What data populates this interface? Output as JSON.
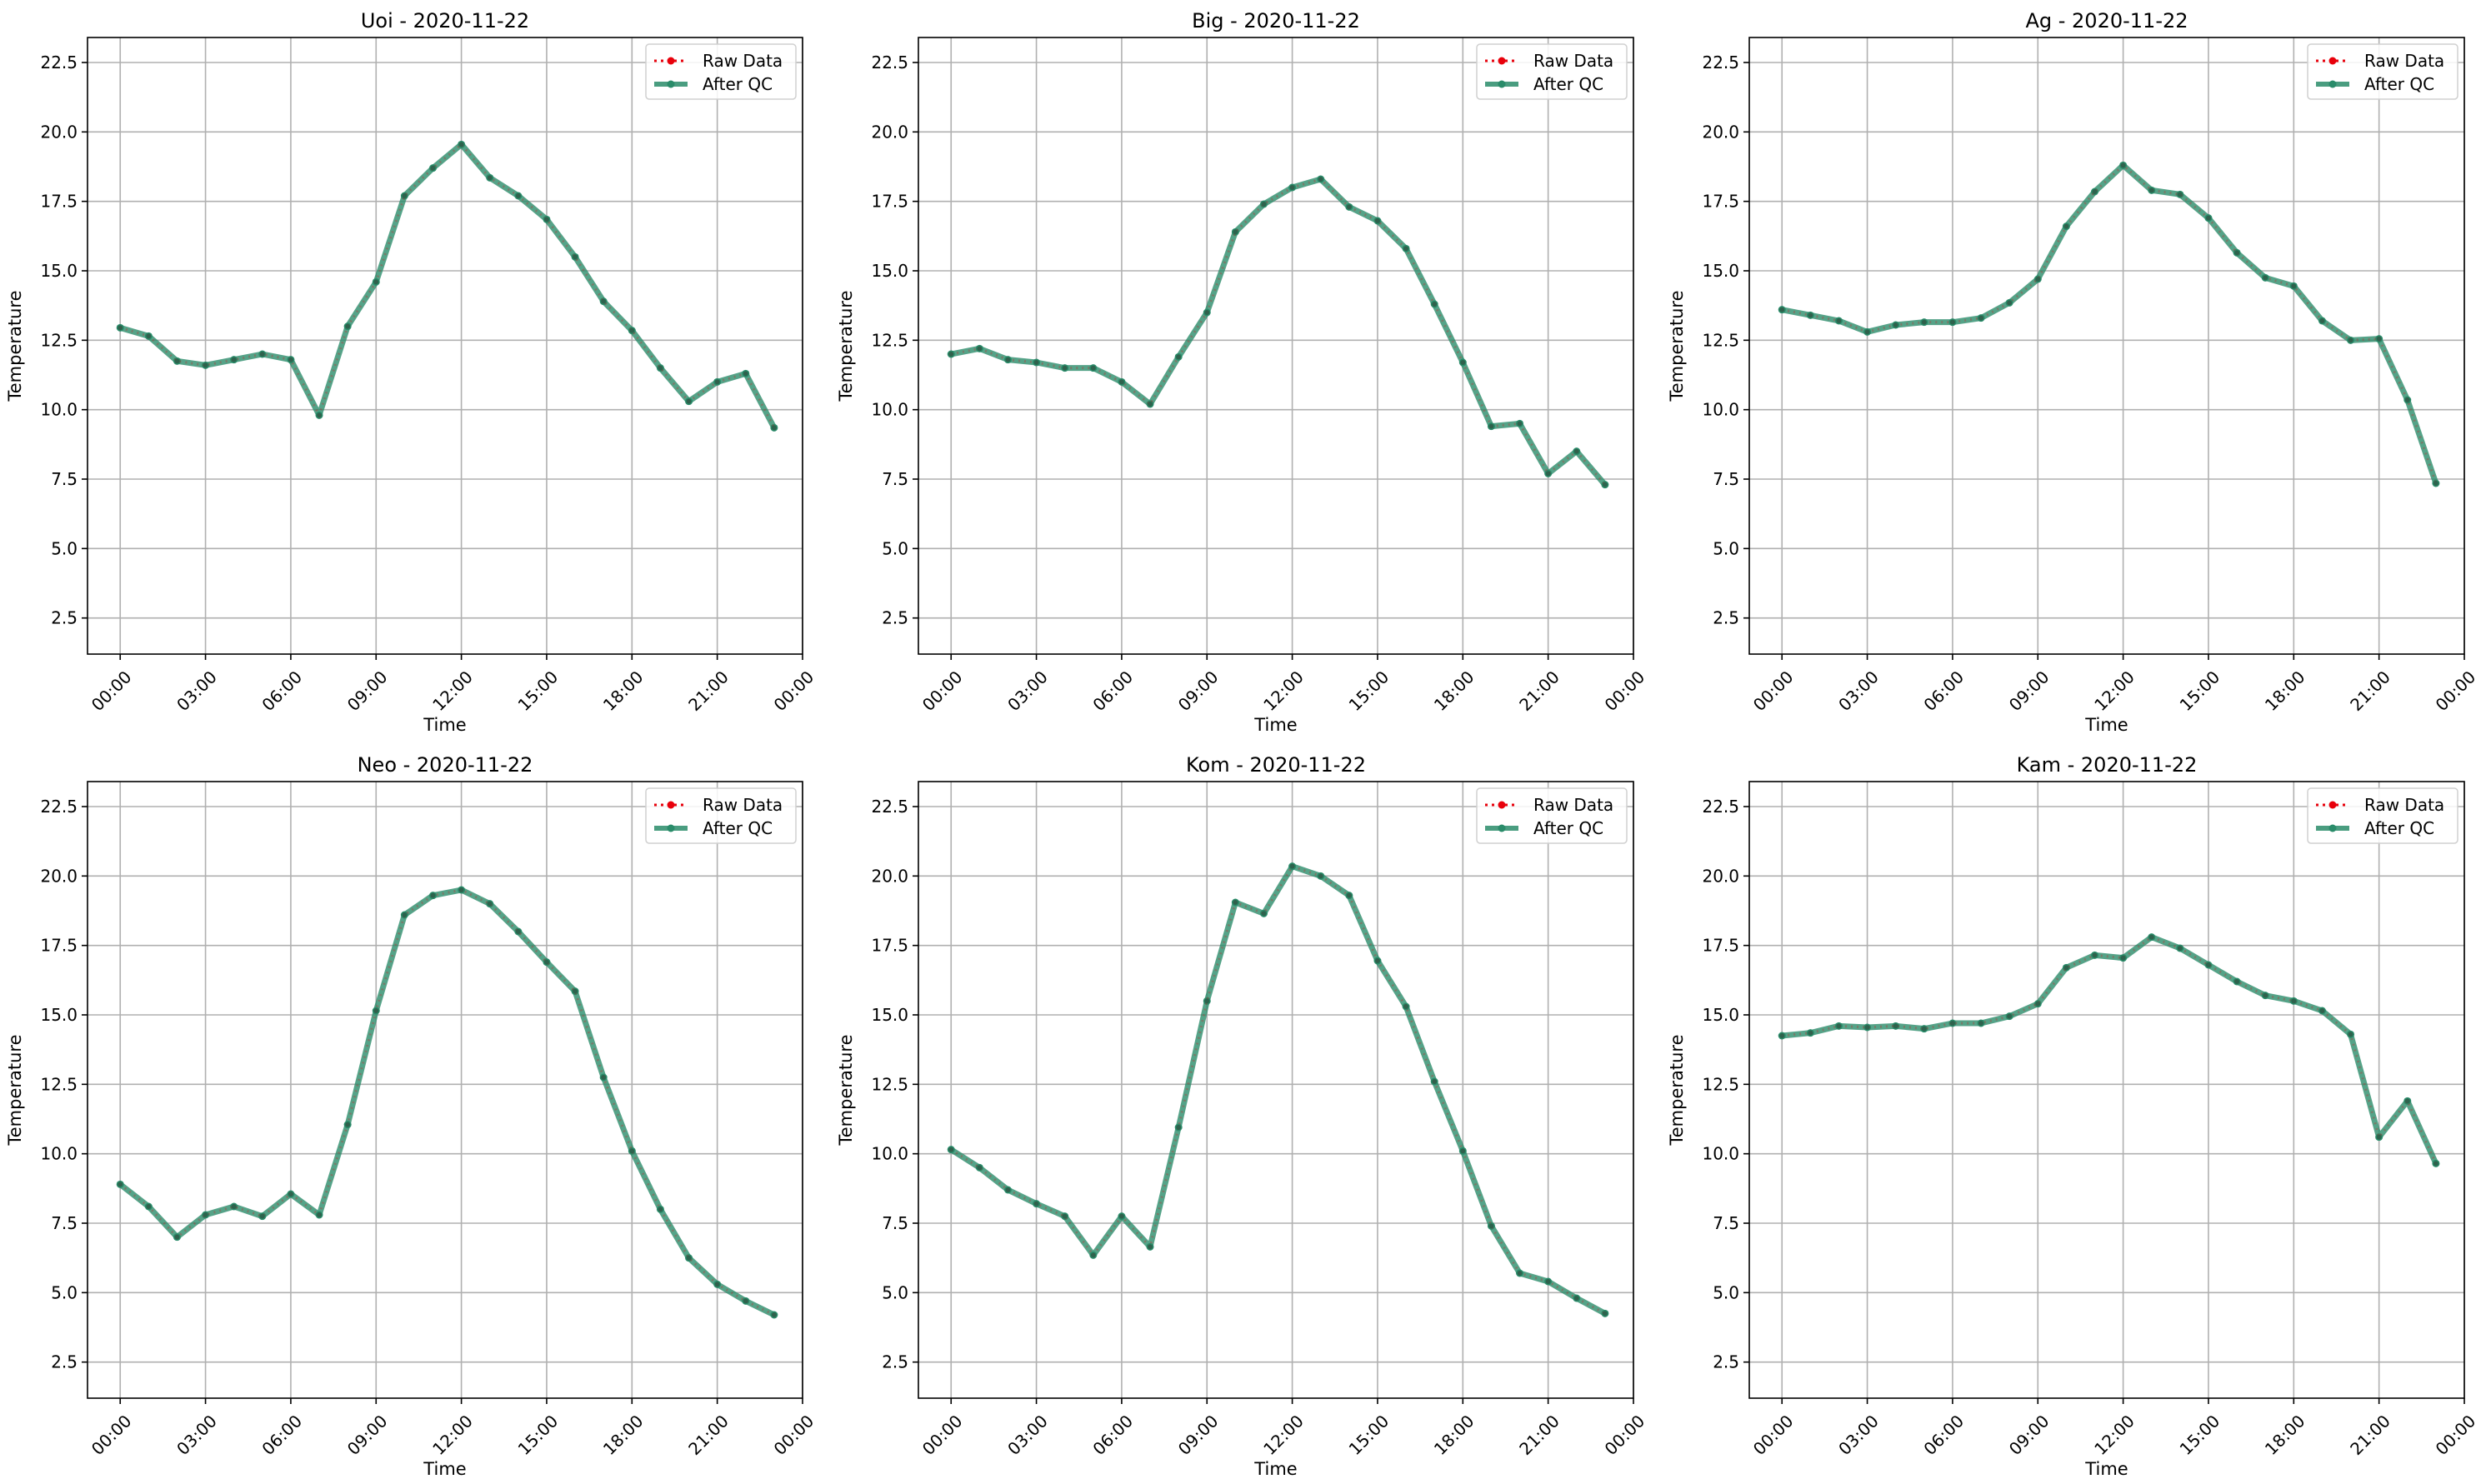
{
  "chart_data": [
    {
      "type": "line",
      "title": "Uoi - 2020-11-22",
      "xlabel": "Time",
      "ylabel": "Temperature",
      "x_tick_labels": [
        "00:00",
        "03:00",
        "06:00",
        "09:00",
        "12:00",
        "15:00",
        "18:00",
        "21:00",
        "00:00"
      ],
      "y_ticks": [
        "2.5",
        "5.0",
        "7.5",
        "10.0",
        "12.5",
        "15.0",
        "17.5",
        "20.0",
        "22.5"
      ],
      "ylim": [
        1.2,
        23.4
      ],
      "grid": true,
      "legend_position": "top-right",
      "x": [
        "00:00",
        "01:00",
        "02:00",
        "03:00",
        "04:00",
        "05:00",
        "06:00",
        "07:00",
        "08:00",
        "09:00",
        "10:00",
        "11:00",
        "12:00",
        "13:00",
        "14:00",
        "15:00",
        "16:00",
        "17:00",
        "18:00",
        "19:00",
        "20:00",
        "21:00",
        "22:00",
        "23:00"
      ],
      "series": [
        {
          "name": "Raw Data",
          "color": "#e8000b",
          "values": [
            12.95,
            12.65,
            11.75,
            11.6,
            11.8,
            12.0,
            11.8,
            9.8,
            13.0,
            14.6,
            17.7,
            18.7,
            19.55,
            18.35,
            17.7,
            16.85,
            15.5,
            13.9,
            12.85,
            11.5,
            10.3,
            11.0,
            11.3,
            9.35
          ]
        },
        {
          "name": "After QC",
          "color": "#2a8c6a",
          "values": [
            12.95,
            12.65,
            11.75,
            11.6,
            11.8,
            12.0,
            11.8,
            9.8,
            13.0,
            14.6,
            17.7,
            18.7,
            19.55,
            18.35,
            17.7,
            16.85,
            15.5,
            13.9,
            12.85,
            11.5,
            10.3,
            11.0,
            11.3,
            9.35
          ]
        }
      ]
    },
    {
      "type": "line",
      "title": "Big - 2020-11-22",
      "xlabel": "Time",
      "ylabel": "Temperature",
      "x_tick_labels": [
        "00:00",
        "03:00",
        "06:00",
        "09:00",
        "12:00",
        "15:00",
        "18:00",
        "21:00",
        "00:00"
      ],
      "y_ticks": [
        "2.5",
        "5.0",
        "7.5",
        "10.0",
        "12.5",
        "15.0",
        "17.5",
        "20.0",
        "22.5"
      ],
      "ylim": [
        1.2,
        23.4
      ],
      "grid": true,
      "legend_position": "top-right",
      "x": [
        "00:00",
        "01:00",
        "02:00",
        "03:00",
        "04:00",
        "05:00",
        "06:00",
        "07:00",
        "08:00",
        "09:00",
        "10:00",
        "11:00",
        "12:00",
        "13:00",
        "14:00",
        "15:00",
        "16:00",
        "17:00",
        "18:00",
        "19:00",
        "20:00",
        "21:00",
        "22:00",
        "23:00"
      ],
      "series": [
        {
          "name": "Raw Data",
          "color": "#e8000b",
          "values": [
            12.0,
            12.2,
            11.8,
            11.7,
            11.5,
            11.5,
            11.0,
            10.2,
            11.9,
            13.5,
            16.4,
            17.4,
            18.0,
            18.3,
            17.3,
            16.8,
            15.8,
            13.8,
            11.7,
            9.4,
            9.5,
            7.7,
            8.5,
            7.3
          ]
        },
        {
          "name": "After QC",
          "color": "#2a8c6a",
          "values": [
            12.0,
            12.2,
            11.8,
            11.7,
            11.5,
            11.5,
            11.0,
            10.2,
            11.9,
            13.5,
            16.4,
            17.4,
            18.0,
            18.3,
            17.3,
            16.8,
            15.8,
            13.8,
            11.7,
            9.4,
            9.5,
            7.7,
            8.5,
            7.3
          ]
        }
      ]
    },
    {
      "type": "line",
      "title": "Ag - 2020-11-22",
      "xlabel": "Time",
      "ylabel": "Temperature",
      "x_tick_labels": [
        "00:00",
        "03:00",
        "06:00",
        "09:00",
        "12:00",
        "15:00",
        "18:00",
        "21:00",
        "00:00"
      ],
      "y_ticks": [
        "2.5",
        "5.0",
        "7.5",
        "10.0",
        "12.5",
        "15.0",
        "17.5",
        "20.0",
        "22.5"
      ],
      "ylim": [
        1.2,
        23.4
      ],
      "grid": true,
      "legend_position": "top-right",
      "x": [
        "00:00",
        "01:00",
        "02:00",
        "03:00",
        "04:00",
        "05:00",
        "06:00",
        "07:00",
        "08:00",
        "09:00",
        "10:00",
        "11:00",
        "12:00",
        "13:00",
        "14:00",
        "15:00",
        "16:00",
        "17:00",
        "18:00",
        "19:00",
        "20:00",
        "21:00",
        "22:00",
        "23:00"
      ],
      "series": [
        {
          "name": "Raw Data",
          "color": "#e8000b",
          "values": [
            13.6,
            13.4,
            13.2,
            12.8,
            13.05,
            13.15,
            13.15,
            13.3,
            13.85,
            14.7,
            16.6,
            17.85,
            18.8,
            17.9,
            17.75,
            16.9,
            15.65,
            14.75,
            14.45,
            13.2,
            12.5,
            12.55,
            10.35,
            7.35
          ]
        },
        {
          "name": "After QC",
          "color": "#2a8c6a",
          "values": [
            13.6,
            13.4,
            13.2,
            12.8,
            13.05,
            13.15,
            13.15,
            13.3,
            13.85,
            14.7,
            16.6,
            17.85,
            18.8,
            17.9,
            17.75,
            16.9,
            15.65,
            14.75,
            14.45,
            13.2,
            12.5,
            12.55,
            10.35,
            7.35
          ]
        }
      ]
    },
    {
      "type": "line",
      "title": "Neo - 2020-11-22",
      "xlabel": "Time",
      "ylabel": "Temperature",
      "x_tick_labels": [
        "00:00",
        "03:00",
        "06:00",
        "09:00",
        "12:00",
        "15:00",
        "18:00",
        "21:00",
        "00:00"
      ],
      "y_ticks": [
        "2.5",
        "5.0",
        "7.5",
        "10.0",
        "12.5",
        "15.0",
        "17.5",
        "20.0",
        "22.5"
      ],
      "ylim": [
        1.2,
        23.4
      ],
      "grid": true,
      "legend_position": "top-right",
      "x": [
        "00:00",
        "01:00",
        "02:00",
        "03:00",
        "04:00",
        "05:00",
        "06:00",
        "07:00",
        "08:00",
        "09:00",
        "10:00",
        "11:00",
        "12:00",
        "13:00",
        "14:00",
        "15:00",
        "16:00",
        "17:00",
        "18:00",
        "19:00",
        "20:00",
        "21:00",
        "22:00",
        "23:00"
      ],
      "series": [
        {
          "name": "Raw Data",
          "color": "#e8000b",
          "values": [
            8.9,
            8.1,
            7.0,
            7.8,
            8.1,
            7.75,
            8.55,
            7.8,
            11.05,
            15.15,
            18.6,
            19.3,
            19.5,
            19.0,
            18.0,
            16.9,
            15.85,
            12.75,
            10.1,
            8.0,
            6.25,
            5.3,
            4.7,
            4.2
          ]
        },
        {
          "name": "After QC",
          "color": "#2a8c6a",
          "values": [
            8.9,
            8.1,
            7.0,
            7.8,
            8.1,
            7.75,
            8.55,
            7.8,
            11.05,
            15.15,
            18.6,
            19.3,
            19.5,
            19.0,
            18.0,
            16.9,
            15.85,
            12.75,
            10.1,
            8.0,
            6.25,
            5.3,
            4.7,
            4.2
          ]
        }
      ]
    },
    {
      "type": "line",
      "title": "Kom - 2020-11-22",
      "xlabel": "Time",
      "ylabel": "Temperature",
      "x_tick_labels": [
        "00:00",
        "03:00",
        "06:00",
        "09:00",
        "12:00",
        "15:00",
        "18:00",
        "21:00",
        "00:00"
      ],
      "y_ticks": [
        "2.5",
        "5.0",
        "7.5",
        "10.0",
        "12.5",
        "15.0",
        "17.5",
        "20.0",
        "22.5"
      ],
      "ylim": [
        1.2,
        23.4
      ],
      "grid": true,
      "legend_position": "top-right",
      "x": [
        "00:00",
        "01:00",
        "02:00",
        "03:00",
        "04:00",
        "05:00",
        "06:00",
        "07:00",
        "08:00",
        "09:00",
        "10:00",
        "11:00",
        "12:00",
        "13:00",
        "14:00",
        "15:00",
        "16:00",
        "17:00",
        "18:00",
        "19:00",
        "20:00",
        "21:00",
        "22:00",
        "23:00"
      ],
      "series": [
        {
          "name": "Raw Data",
          "color": "#e8000b",
          "values": [
            10.15,
            9.5,
            8.7,
            8.2,
            7.75,
            6.35,
            7.75,
            6.65,
            10.95,
            15.5,
            19.05,
            18.65,
            20.35,
            20.0,
            19.3,
            16.95,
            15.3,
            12.6,
            10.1,
            7.4,
            5.7,
            5.4,
            4.8,
            4.25
          ]
        },
        {
          "name": "After QC",
          "color": "#2a8c6a",
          "values": [
            10.15,
            9.5,
            8.7,
            8.2,
            7.75,
            6.35,
            7.75,
            6.65,
            10.95,
            15.5,
            19.05,
            18.65,
            20.35,
            20.0,
            19.3,
            16.95,
            15.3,
            12.6,
            10.1,
            7.4,
            5.7,
            5.4,
            4.8,
            4.25
          ]
        }
      ]
    },
    {
      "type": "line",
      "title": "Kam - 2020-11-22",
      "xlabel": "Time",
      "ylabel": "Temperature",
      "x_tick_labels": [
        "00:00",
        "03:00",
        "06:00",
        "09:00",
        "12:00",
        "15:00",
        "18:00",
        "21:00",
        "00:00"
      ],
      "y_ticks": [
        "2.5",
        "5.0",
        "7.5",
        "10.0",
        "12.5",
        "15.0",
        "17.5",
        "20.0",
        "22.5"
      ],
      "ylim": [
        1.2,
        23.4
      ],
      "grid": true,
      "legend_position": "top-right",
      "x": [
        "00:00",
        "01:00",
        "02:00",
        "03:00",
        "04:00",
        "05:00",
        "06:00",
        "07:00",
        "08:00",
        "09:00",
        "10:00",
        "11:00",
        "12:00",
        "13:00",
        "14:00",
        "15:00",
        "16:00",
        "17:00",
        "18:00",
        "19:00",
        "20:00",
        "21:00",
        "22:00",
        "23:00"
      ],
      "series": [
        {
          "name": "Raw Data",
          "color": "#e8000b",
          "values": [
            14.25,
            14.35,
            14.6,
            14.55,
            14.6,
            14.5,
            14.7,
            14.7,
            14.95,
            15.4,
            16.7,
            17.15,
            17.05,
            17.8,
            17.4,
            16.8,
            16.2,
            15.7,
            15.5,
            15.15,
            14.3,
            10.6,
            11.9,
            9.65
          ]
        },
        {
          "name": "After QC",
          "color": "#2a8c6a",
          "values": [
            14.25,
            14.35,
            14.6,
            14.55,
            14.6,
            14.5,
            14.7,
            14.7,
            14.95,
            15.4,
            16.7,
            17.15,
            17.05,
            17.8,
            17.4,
            16.8,
            16.2,
            15.7,
            15.5,
            15.15,
            14.3,
            10.6,
            11.9,
            9.65
          ]
        }
      ]
    }
  ]
}
